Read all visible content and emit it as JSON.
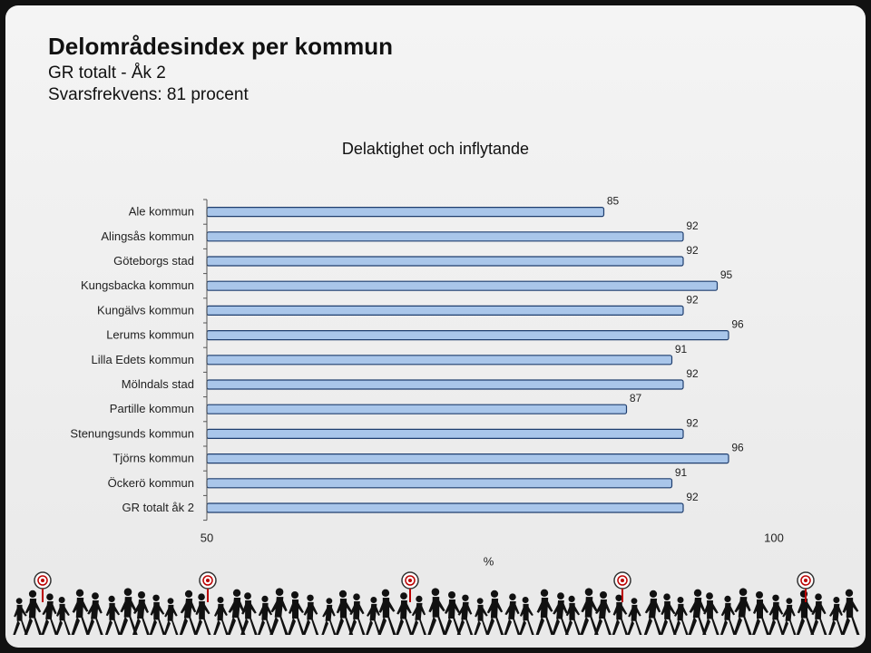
{
  "header": {
    "title": "Delområdesindex per kommun",
    "subtitle1": "GR totalt - Åk 2",
    "subtitle2": "Svarsfrekvens: 81 procent"
  },
  "chart_data": {
    "type": "bar",
    "orientation": "horizontal",
    "title": "Delaktighet och inflytande",
    "categories": [
      "Ale kommun",
      "Alingsås kommun",
      "Göteborgs stad",
      "Kungsbacka kommun",
      "Kungälvs kommun",
      "Lerums kommun",
      "Lilla Edets kommun",
      "Mölndals stad",
      "Partille kommun",
      "Stenungsunds kommun",
      "Tjörns kommun",
      "Öckerö kommun",
      "GR totalt åk 2"
    ],
    "values": [
      85,
      92,
      92,
      95,
      92,
      96,
      91,
      92,
      87,
      92,
      96,
      91,
      92
    ],
    "xlabel": "%",
    "xlim": [
      50,
      100
    ],
    "xticks": [
      "50",
      "100"
    ],
    "grid": false,
    "colors": {
      "bar_fill": "#a9c6ea",
      "bar_stroke": "#1f3e6e",
      "axis": "#555555"
    }
  }
}
